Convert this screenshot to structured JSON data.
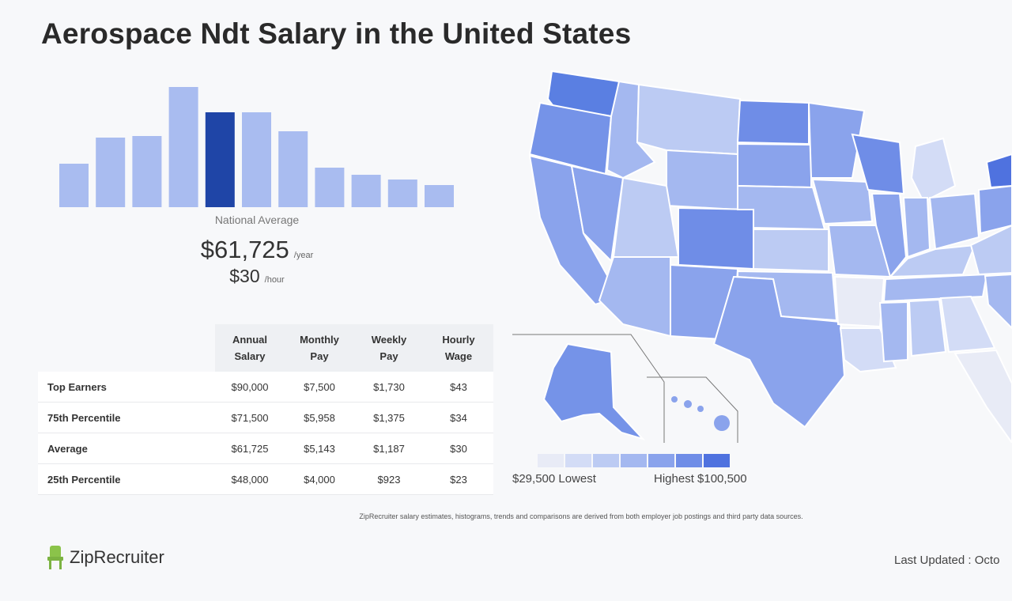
{
  "title": "Aerospace Ndt Salary in the United States",
  "histogram": {
    "values": [
      55,
      88,
      90,
      152,
      120,
      120,
      96,
      50,
      41,
      35,
      28
    ],
    "highlight_index": 4,
    "bar_color": "#a9bcf0",
    "highlight_color": "#1f45a7"
  },
  "summary": {
    "label": "National Average",
    "annual": "$61,725",
    "annual_unit": "/year",
    "hourly": "$30",
    "hourly_unit": "/hour"
  },
  "table": {
    "columns": [
      [
        "Annual",
        "Salary"
      ],
      [
        "Monthly",
        "Pay"
      ],
      [
        "Weekly",
        "Pay"
      ],
      [
        "Hourly",
        "Wage"
      ]
    ],
    "rows": [
      {
        "label": "Top Earners",
        "cells": [
          "$90,000",
          "$7,500",
          "$1,730",
          "$43"
        ]
      },
      {
        "label": "75th Percentile",
        "cells": [
          "$71,500",
          "$5,958",
          "$1,375",
          "$34"
        ]
      },
      {
        "label": "Average",
        "cells": [
          "$61,725",
          "$5,143",
          "$1,187",
          "$30"
        ]
      },
      {
        "label": "25th Percentile",
        "cells": [
          "$48,000",
          "$4,000",
          "$923",
          "$23"
        ]
      }
    ]
  },
  "map": {
    "legend_colors": [
      "#e8ebf6",
      "#d3dcf6",
      "#bccbf3",
      "#a4b8f0",
      "#8aa3ec",
      "#6f8de7",
      "#4f72df"
    ],
    "low_label": "$29,500 Lowest",
    "high_label": "Highest $100,500"
  },
  "footer": {
    "disclaimer": "ZipRecruiter salary estimates, histograms, trends and comparisons are derived from both employer job postings and third party data sources.",
    "brand": "ZipRecruiter",
    "last_updated": "Last Updated : Octo"
  }
}
